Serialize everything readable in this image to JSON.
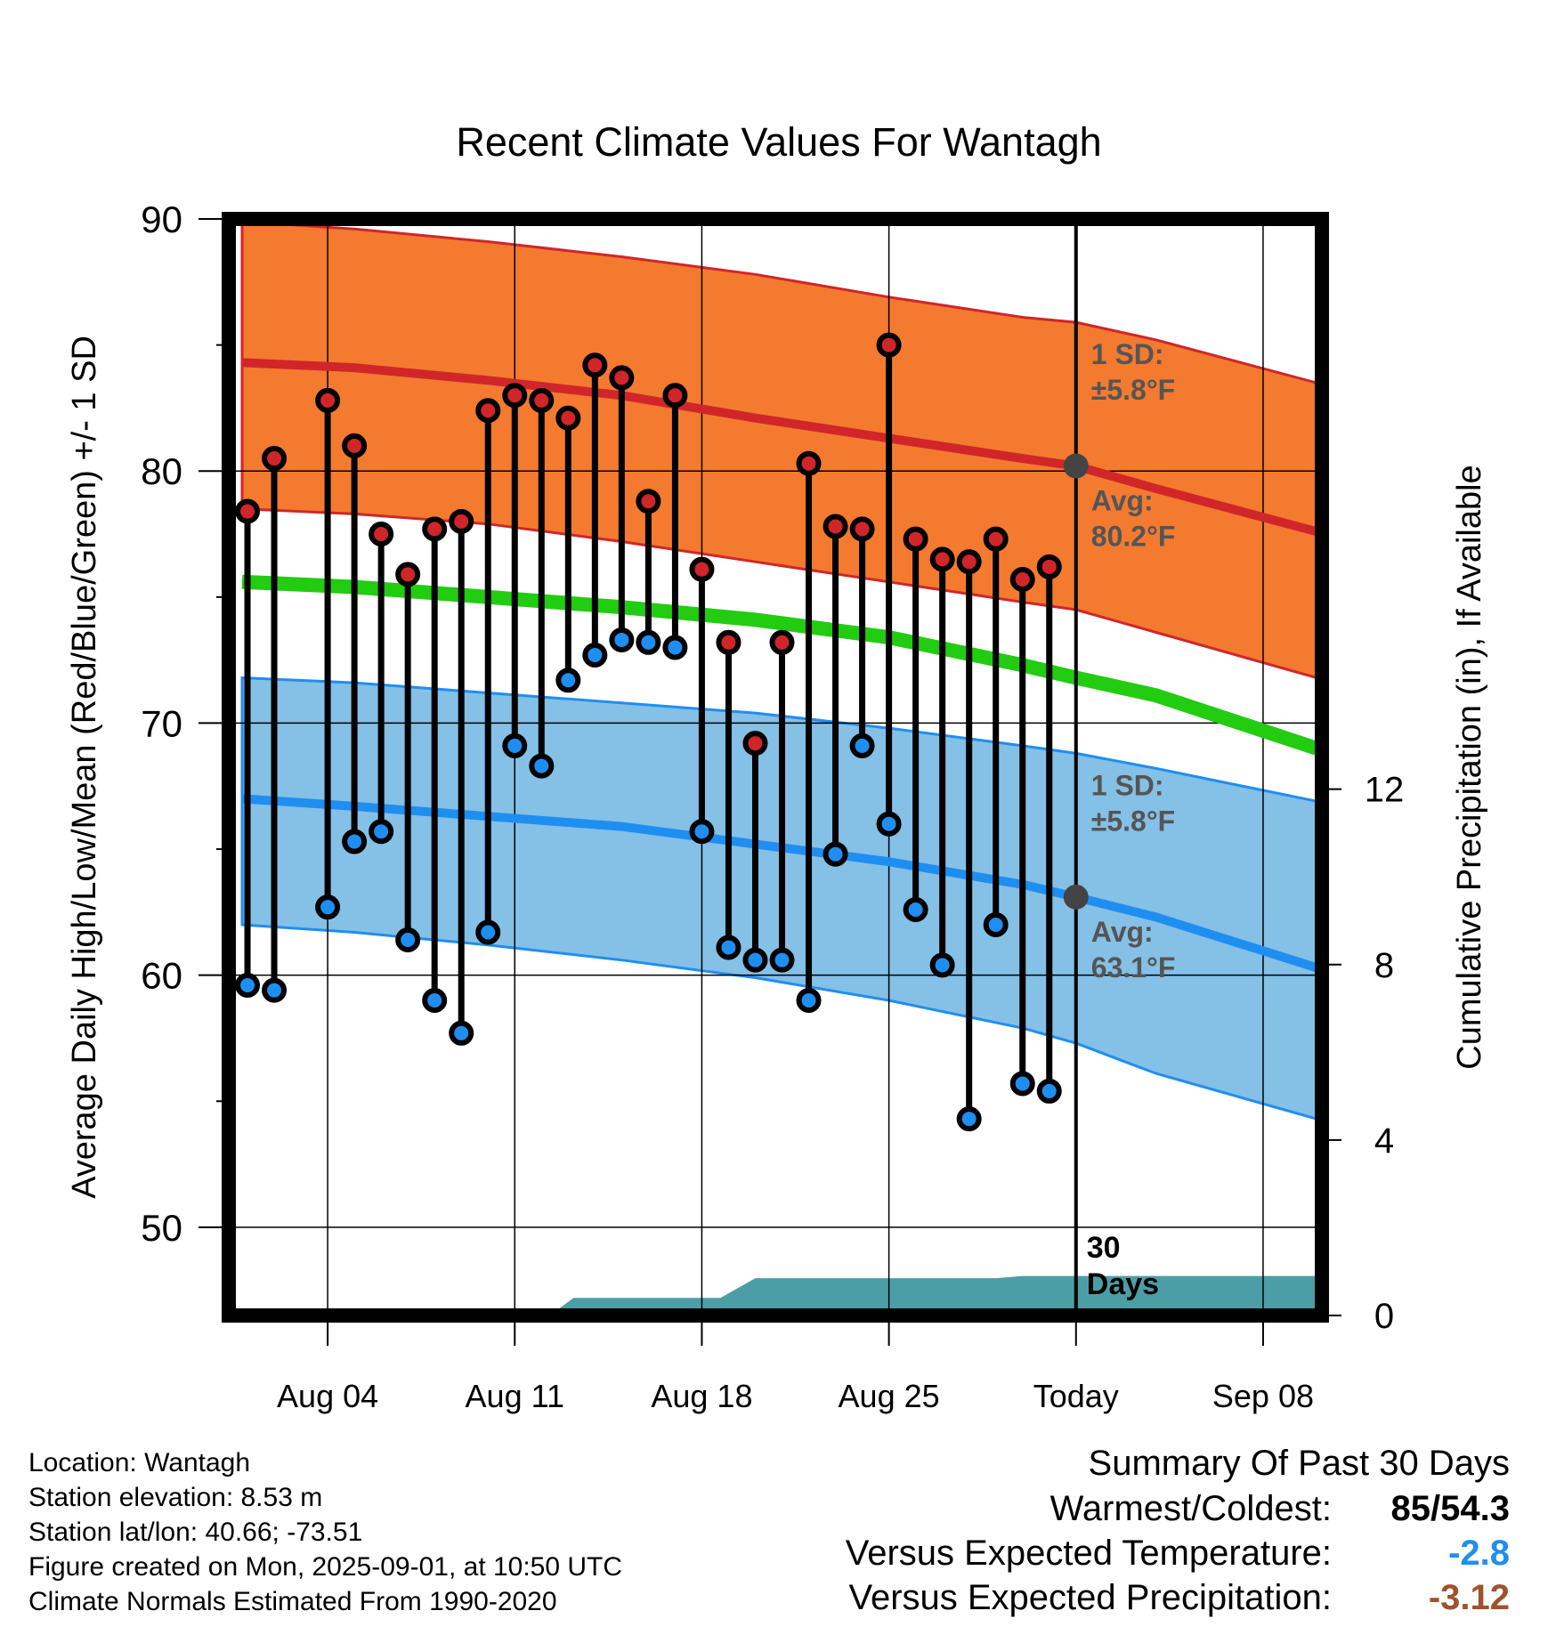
{
  "chart_data": {
    "type": "line",
    "title": "Recent Climate Values For Wantagh",
    "xlabel": "Day",
    "ylabel": "Average Daily High/Low/Mean (Red/Blue/Green) +/- 1 SD",
    "y2label": "Cumulative Precipitation (in), If Available",
    "ylim": [
      46.5,
      90
    ],
    "y_ticks": [
      50,
      60,
      70,
      80,
      90
    ],
    "y2lim": [
      0,
      25
    ],
    "y2_ticks": [
      0,
      4,
      8,
      12
    ],
    "x_ticks": [
      "Aug 04",
      "Aug 11",
      "Aug 18",
      "Aug 25",
      "Today",
      "Sep 08"
    ],
    "x_tick_days": [
      4,
      11,
      18,
      25,
      32,
      39
    ],
    "xlim": [
      0.3,
      41.2
    ],
    "today_day": 32,
    "grid": true,
    "colors": {
      "high_band": "#f47a2f",
      "high_line": "#d0262a",
      "low_band": "#85c0e6",
      "low_line": "#1f8ef1",
      "mean_line": "#22cc11",
      "precip": "#4c9ea6",
      "high_marker": "#d0262a",
      "low_marker": "#1f8ef1",
      "today_marker": "#444444",
      "annot": "#555555"
    },
    "normals": {
      "x": [
        0.8,
        5,
        10,
        15,
        20,
        25,
        30,
        32,
        35,
        41
      ],
      "high_avg": [
        84.3,
        84.1,
        83.6,
        83.0,
        82.1,
        81.3,
        80.5,
        80.2,
        79.3,
        77.6
      ],
      "high_upper": [
        89.9,
        89.6,
        89.1,
        88.5,
        87.8,
        86.9,
        86.1,
        85.9,
        85.2,
        83.5
      ],
      "high_lower": [
        78.5,
        78.3,
        77.9,
        77.2,
        76.4,
        75.6,
        74.8,
        74.5,
        73.6,
        71.8
      ],
      "mean": [
        75.6,
        75.4,
        75.0,
        74.6,
        74.1,
        73.4,
        72.3,
        71.8,
        71.1,
        69.0
      ],
      "low_avg": [
        67.0,
        66.7,
        66.3,
        65.9,
        65.2,
        64.5,
        63.6,
        63.1,
        62.3,
        60.3
      ],
      "low_upper": [
        71.8,
        71.6,
        71.2,
        70.8,
        70.4,
        69.8,
        69.1,
        68.8,
        68.2,
        66.9
      ],
      "low_lower": [
        62.0,
        61.7,
        61.2,
        60.6,
        59.9,
        59.0,
        57.9,
        57.3,
        56.1,
        54.3
      ]
    },
    "observed": {
      "days": [
        1,
        2,
        4,
        5,
        6,
        7,
        8,
        9,
        10,
        11,
        12,
        13,
        14,
        15,
        16,
        17,
        18,
        19,
        20,
        21,
        22,
        23,
        24,
        25,
        26,
        27,
        28,
        29,
        30,
        31
      ],
      "high": [
        78.4,
        80.5,
        82.8,
        81.0,
        77.5,
        75.9,
        77.7,
        78.0,
        82.4,
        83.0,
        82.8,
        82.1,
        84.2,
        83.7,
        78.8,
        83.0,
        76.1,
        73.2,
        69.2,
        73.2,
        80.3,
        77.8,
        77.7,
        85.0,
        77.3,
        76.5,
        76.4,
        77.3,
        75.7,
        76.2
      ],
      "low": [
        59.6,
        59.4,
        62.7,
        65.3,
        65.7,
        61.4,
        59.0,
        57.7,
        61.7,
        69.1,
        68.3,
        71.7,
        72.7,
        73.3,
        73.2,
        73.0,
        65.7,
        61.1,
        60.6,
        60.6,
        59.0,
        64.8,
        69.1,
        66.0,
        62.6,
        60.4,
        54.3,
        62.0,
        55.7,
        55.4
      ]
    },
    "precip": {
      "x": [
        12.3,
        13.2,
        18.7,
        20.0,
        29.0,
        30.0,
        41.2
      ],
      "y": [
        0,
        0.4,
        0.4,
        0.85,
        0.85,
        0.9,
        0.9
      ]
    },
    "annotations": {
      "high_sd": "1 SD:",
      "high_sd_val": "±5.8°F",
      "high_avg": "Avg:",
      "high_avg_val": "80.2°F",
      "low_sd": "1 SD:",
      "low_sd_val": "±5.8°F",
      "low_avg": "Avg:",
      "low_avg_val": "63.1°F",
      "days_num": "30",
      "days_word": "Days"
    }
  },
  "footer": {
    "location": "Location: Wantagh",
    "elevation": "Station elevation: 8.53 m",
    "latlon": "Station lat/lon: 40.66; -73.51",
    "created": "Figure created on Mon, 2025-09-01, at 10:50 UTC",
    "normals": "Climate Normals Estimated From 1990-2020"
  },
  "summary": {
    "title": "Summary Of Past 30 Days",
    "warm_label": "Warmest/Coldest:",
    "warm_value": "85/54.3",
    "temp_label": "Versus Expected Temperature:",
    "temp_value": "-2.8",
    "temp_color": "#1f8ef1",
    "precip_label": "Versus Expected Precipitation:",
    "precip_value": "-3.12",
    "precip_color": "#a0522d"
  }
}
